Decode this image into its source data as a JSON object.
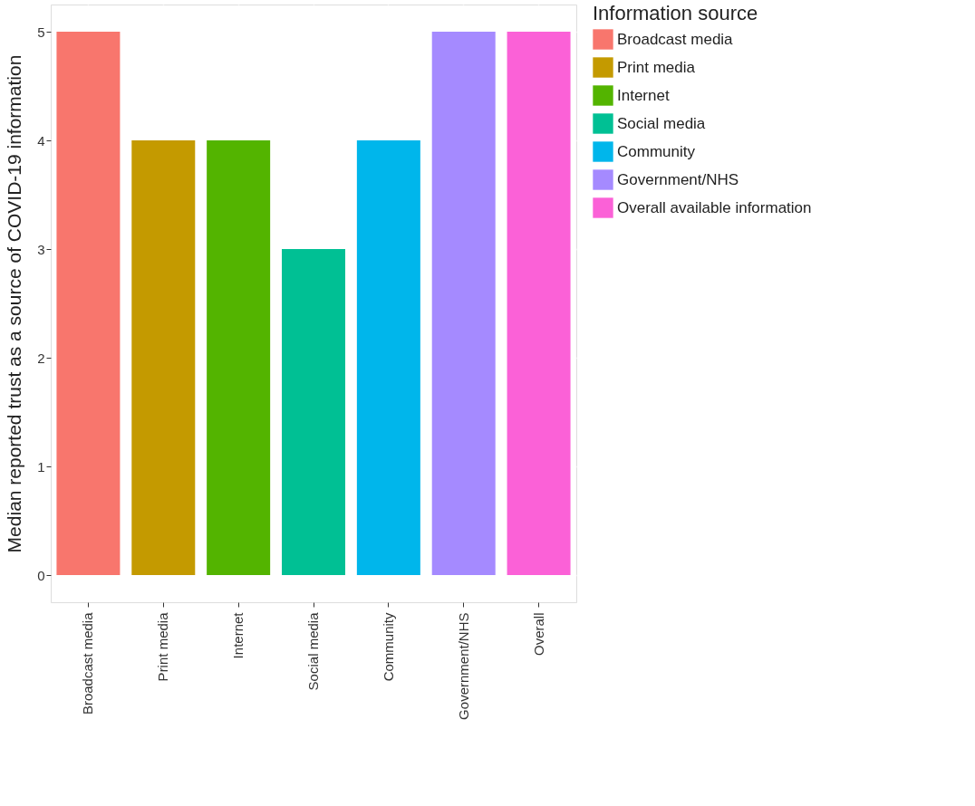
{
  "chart_data": {
    "type": "bar",
    "ylabel": "Median reported trust as a source of COVID-19 information",
    "legend_title": "Information source",
    "categories": [
      "Broadcast media",
      "Print media",
      "Internet",
      "Social media",
      "Community",
      "Government/NHS",
      "Overall"
    ],
    "series": [
      {
        "name": "Broadcast media",
        "color": "#f8766d",
        "values": [
          5,
          null,
          null,
          null,
          null,
          null,
          null
        ]
      },
      {
        "name": "Print media",
        "color": "#c49a00",
        "values": [
          null,
          4,
          null,
          null,
          null,
          null,
          null
        ]
      },
      {
        "name": "Internet",
        "color": "#53b400",
        "values": [
          null,
          null,
          4,
          null,
          null,
          null,
          null
        ]
      },
      {
        "name": "Social media",
        "color": "#00c094",
        "values": [
          null,
          null,
          null,
          3,
          null,
          null,
          null
        ]
      },
      {
        "name": "Community",
        "color": "#00b6eb",
        "values": [
          null,
          null,
          null,
          null,
          4,
          null,
          null
        ]
      },
      {
        "name": "Government/NHS",
        "color": "#a58aff",
        "values": [
          null,
          null,
          null,
          null,
          null,
          5,
          null
        ]
      },
      {
        "name": "Overall available information",
        "color": "#fb61d7",
        "values": [
          null,
          null,
          null,
          null,
          null,
          null,
          5
        ]
      }
    ],
    "ylim": [
      -0.25,
      5.25
    ],
    "yticks": [
      0,
      1,
      2,
      3,
      4,
      5
    ],
    "grid": true,
    "legend": "right"
  }
}
